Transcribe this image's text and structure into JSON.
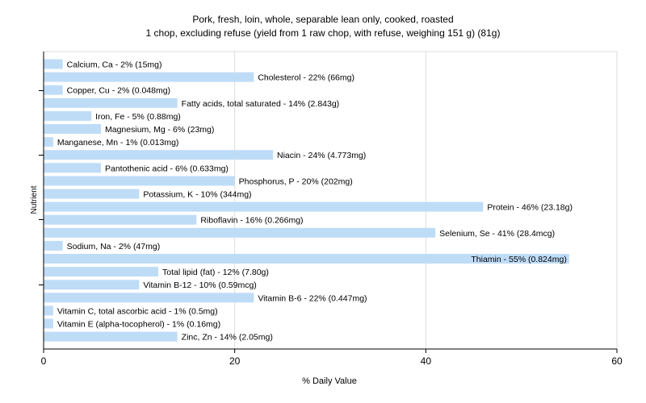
{
  "chart_data": {
    "type": "bar",
    "orientation": "horizontal",
    "title": "Pork, fresh, loin, whole, separable lean only, cooked, roasted",
    "subtitle": "1 chop, excluding refuse (yield from 1 raw chop, with refuse, weighing 151 g) (81g)",
    "xlabel": "% Daily Value",
    "ylabel": "Nutrient",
    "xlim": [
      0,
      60
    ],
    "xticks": [
      0,
      20,
      40,
      60
    ],
    "grid": true,
    "legend": "none",
    "bar_color": "#bfdcf7",
    "categories": [
      "Calcium, Ca",
      "Cholesterol",
      "Copper, Cu",
      "Fatty acids, total saturated",
      "Iron, Fe",
      "Magnesium, Mg",
      "Manganese, Mn",
      "Niacin",
      "Pantothenic acid",
      "Phosphorus, P",
      "Potassium, K",
      "Protein",
      "Riboflavin",
      "Selenium, Se",
      "Sodium, Na",
      "Thiamin",
      "Total lipid (fat)",
      "Vitamin B-12",
      "Vitamin B-6",
      "Vitamin C, total ascorbic acid",
      "Vitamin E (alpha-tocopherol)",
      "Zinc, Zn"
    ],
    "values": [
      2,
      22,
      2,
      14,
      5,
      6,
      1,
      24,
      6,
      20,
      10,
      46,
      16,
      41,
      2,
      55,
      12,
      10,
      22,
      1,
      1,
      14
    ],
    "labels": [
      "Calcium, Ca - 2% (15mg)",
      "Cholesterol - 22% (66mg)",
      "Copper, Cu - 2% (0.048mg)",
      "Fatty acids, total saturated - 14% (2.843g)",
      "Iron, Fe - 5% (0.88mg)",
      "Magnesium, Mg - 6% (23mg)",
      "Manganese, Mn - 1% (0.013mg)",
      "Niacin - 24% (4.773mg)",
      "Pantothenic acid - 6% (0.633mg)",
      "Phosphorus, P - 20% (202mg)",
      "Potassium, K - 10% (344mg)",
      "Protein - 46% (23.18g)",
      "Riboflavin - 16% (0.266mg)",
      "Selenium, Se - 41% (28.4mcg)",
      "Sodium, Na - 2% (47mg)",
      "Thiamin - 55% (0.824mg)",
      "Total lipid (fat) - 12% (7.80g)",
      "Vitamin B-12 - 10% (0.59mcg)",
      "Vitamin B-6 - 22% (0.447mg)",
      "Vitamin C, total ascorbic acid - 1% (0.5mg)",
      "Vitamin E (alpha-tocopherol) - 1% (0.16mg)",
      "Zinc, Zn - 14% (2.05mg)"
    ]
  }
}
